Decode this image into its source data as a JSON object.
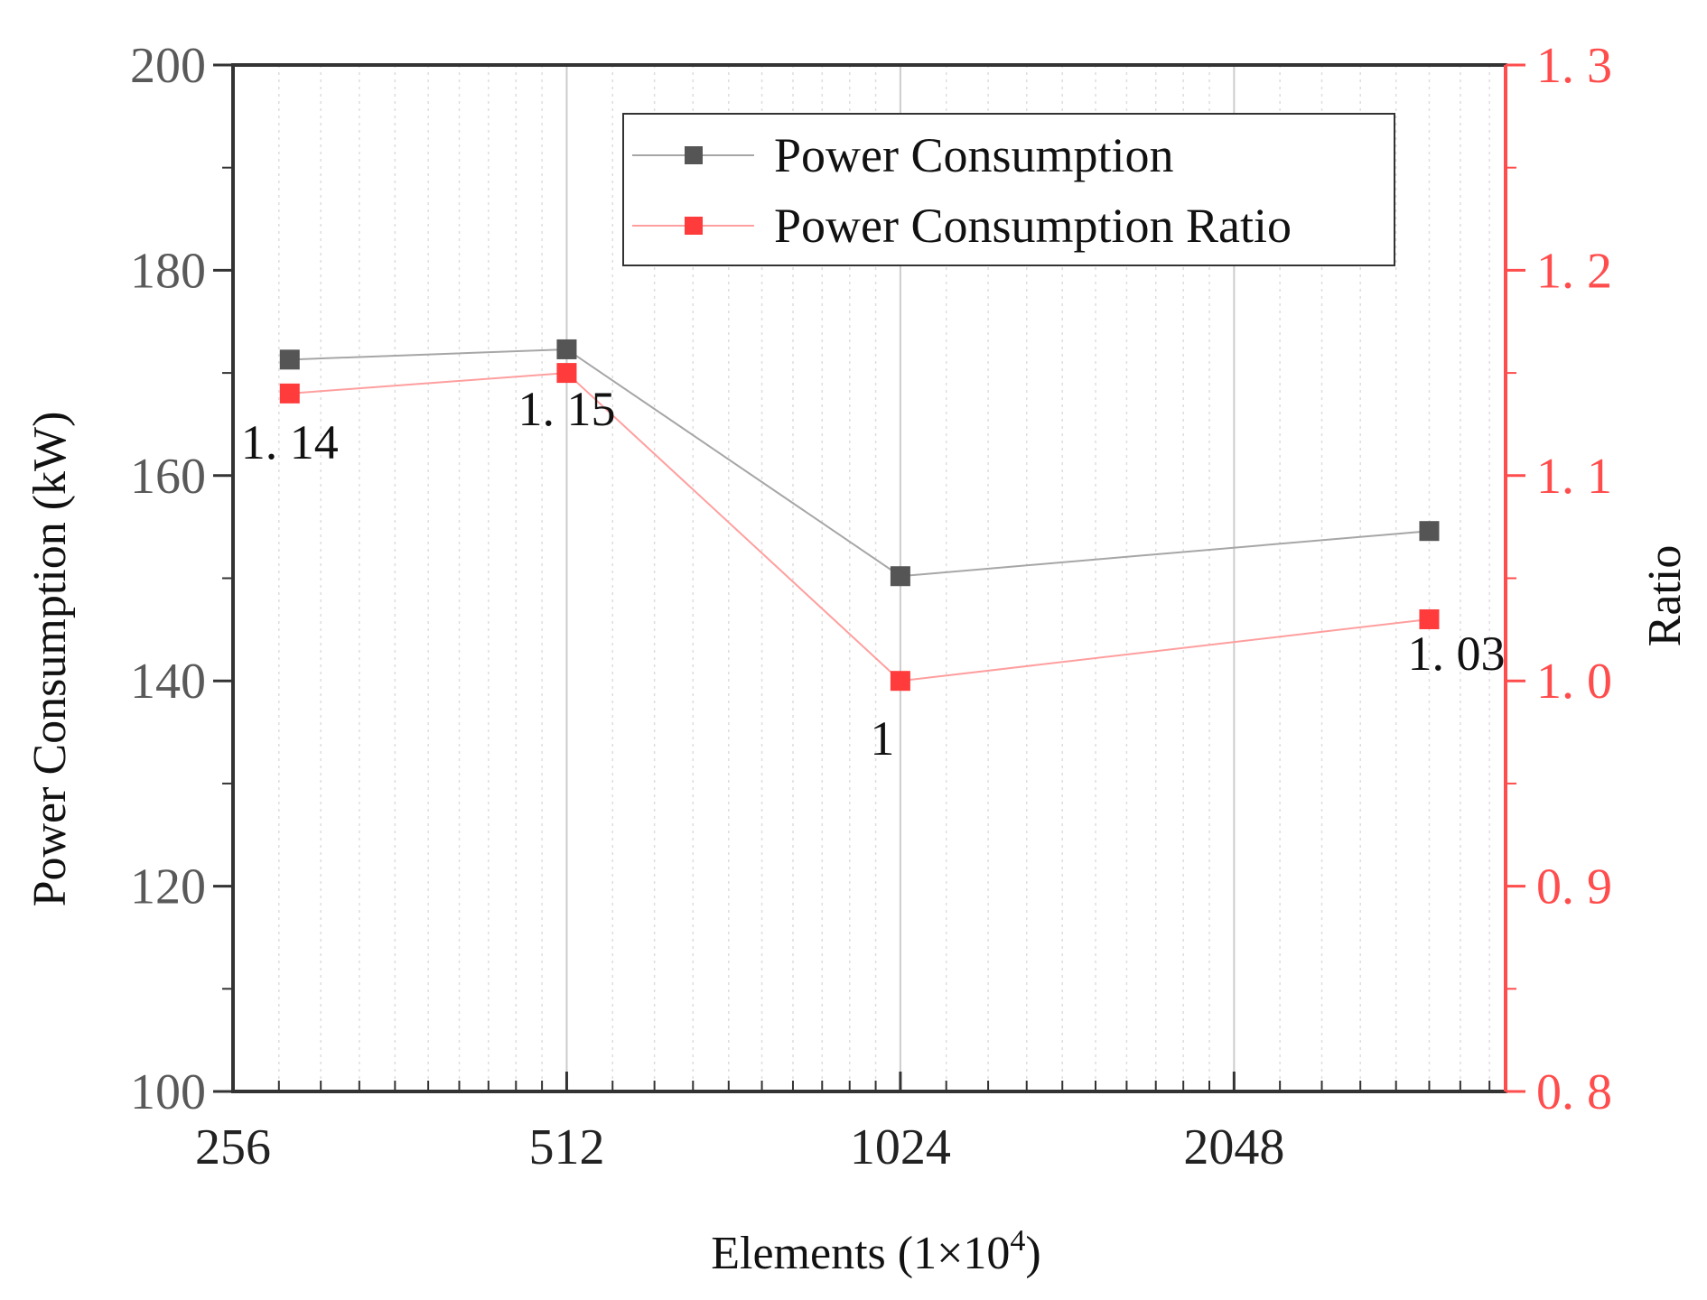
{
  "chart_data": {
    "type": "line",
    "x_axis": {
      "label_main": "Elements (1×10",
      "label_sup": "4",
      "label_close": ")",
      "scale": "log2",
      "range": [
        256,
        3600
      ],
      "ticks": [
        256,
        512,
        1024,
        2048
      ],
      "tick_labels": [
        "256",
        "512",
        "1024",
        "2048"
      ]
    },
    "y_axis_left": {
      "label": "Power Consumption (kW)",
      "range": [
        100,
        200
      ],
      "ticks": [
        100,
        120,
        140,
        160,
        180,
        200
      ],
      "tick_labels": [
        "100",
        "120",
        "140",
        "160",
        "180",
        "200"
      ]
    },
    "y_axis_right": {
      "label": "Ratio",
      "range": [
        0.8,
        1.3
      ],
      "ticks": [
        0.8,
        0.9,
        1.0,
        1.1,
        1.2,
        1.3
      ],
      "tick_labels": [
        "0. 8",
        "0. 9",
        "1. 0",
        "1. 1",
        "1. 2",
        "1. 3"
      ],
      "color": "#ff4c4c"
    },
    "x": [
      288,
      512,
      1024,
      3072
    ],
    "series": [
      {
        "name": "Power Consumption",
        "axis": "left",
        "values": [
          171.3,
          172.3,
          150.2,
          154.6
        ],
        "color": "#555555",
        "line_color": "#a6a6a6"
      },
      {
        "name": "Power Consumption Ratio",
        "axis": "right",
        "values": [
          1.14,
          1.15,
          1.0,
          1.03
        ],
        "color": "#ff3b3b",
        "line_color": "#ff9e9e",
        "data_labels": [
          "1. 14",
          "1. 15",
          "1",
          "1. 03"
        ]
      }
    ],
    "legend_position": "top-center",
    "grid": true
  }
}
